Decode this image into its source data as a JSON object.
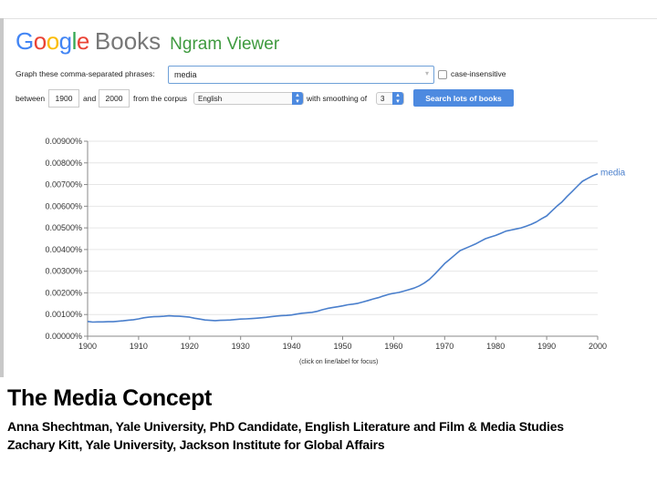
{
  "header": {
    "logo_google_letters": [
      "G",
      "o",
      "o",
      "g",
      "l",
      "e"
    ],
    "logo_google_colors": [
      "#4285f4",
      "#ea4335",
      "#fbbc05",
      "#4285f4",
      "#34a853",
      "#ea4335"
    ],
    "logo_books": "Books",
    "logo_ngram": "Ngram Viewer"
  },
  "form": {
    "phrases_label": "Graph these comma-separated phrases:",
    "phrases_value": "media",
    "case_insensitive_label": "case-insensitive",
    "between_label": "between",
    "year_start": "1900",
    "and_label": "and",
    "year_end": "2000",
    "corpus_label": "from the corpus",
    "corpus_value": "English",
    "smoothing_label": "with smoothing of",
    "smoothing_value": "3",
    "search_button": "Search lots of books"
  },
  "chart_data": {
    "type": "line",
    "x_ticks": [
      1900,
      1910,
      1920,
      1930,
      1940,
      1950,
      1960,
      1970,
      1980,
      1990,
      2000
    ],
    "y_ticks": [
      "0.00000%",
      "0.00100%",
      "0.00200%",
      "0.00300%",
      "0.00400%",
      "0.00500%",
      "0.00600%",
      "0.00700%",
      "0.00800%",
      "0.00900%"
    ],
    "xlim": [
      1900,
      2000
    ],
    "ylim": [
      0,
      0.009
    ],
    "grid": "horizontal",
    "line_color": "#4a7fcc",
    "series": [
      {
        "name": "media",
        "x": [
          1900,
          1901,
          1902,
          1903,
          1904,
          1905,
          1906,
          1907,
          1908,
          1909,
          1910,
          1911,
          1912,
          1913,
          1914,
          1915,
          1916,
          1917,
          1918,
          1919,
          1920,
          1921,
          1922,
          1923,
          1924,
          1925,
          1926,
          1927,
          1928,
          1929,
          1930,
          1931,
          1932,
          1933,
          1934,
          1935,
          1936,
          1937,
          1938,
          1939,
          1940,
          1941,
          1942,
          1943,
          1944,
          1945,
          1946,
          1947,
          1948,
          1949,
          1950,
          1951,
          1952,
          1953,
          1954,
          1955,
          1956,
          1957,
          1958,
          1959,
          1960,
          1961,
          1962,
          1963,
          1964,
          1965,
          1966,
          1967,
          1968,
          1969,
          1970,
          1971,
          1972,
          1973,
          1974,
          1975,
          1976,
          1977,
          1978,
          1979,
          1980,
          1981,
          1982,
          1983,
          1984,
          1985,
          1986,
          1987,
          1988,
          1989,
          1990,
          1991,
          1992,
          1993,
          1994,
          1995,
          1996,
          1997,
          1998,
          1999,
          2000
        ],
        "values": [
          0.00068,
          0.00065,
          0.00066,
          0.00066,
          0.00067,
          0.00067,
          0.00069,
          0.00071,
          0.00074,
          0.00076,
          0.0008,
          0.00085,
          0.00088,
          0.0009,
          0.00091,
          0.00092,
          0.00094,
          0.00093,
          0.00092,
          0.0009,
          0.00088,
          0.00083,
          0.00079,
          0.00075,
          0.00073,
          0.00072,
          0.00073,
          0.00074,
          0.00075,
          0.00077,
          0.00079,
          0.0008,
          0.00081,
          0.00083,
          0.00085,
          0.00087,
          0.0009,
          0.00093,
          0.00095,
          0.00096,
          0.00098,
          0.00102,
          0.00106,
          0.00108,
          0.0011,
          0.00115,
          0.00122,
          0.00128,
          0.00132,
          0.00136,
          0.0014,
          0.00145,
          0.00148,
          0.00152,
          0.00158,
          0.00165,
          0.00172,
          0.00178,
          0.00186,
          0.00193,
          0.00198,
          0.00202,
          0.00208,
          0.00215,
          0.00222,
          0.00232,
          0.00245,
          0.00262,
          0.00285,
          0.0031,
          0.00335,
          0.00355,
          0.00375,
          0.00395,
          0.00405,
          0.00415,
          0.00425,
          0.00438,
          0.0045,
          0.00458,
          0.00465,
          0.00475,
          0.00485,
          0.0049,
          0.00495,
          0.005,
          0.00508,
          0.00517,
          0.00528,
          0.00542,
          0.00555,
          0.00578,
          0.006,
          0.0062,
          0.00645,
          0.00668,
          0.00692,
          0.00715,
          0.00728,
          0.0074,
          0.0075
        ]
      }
    ]
  },
  "chart_footnote": "(click on line/label for focus)",
  "slide": {
    "title": "The Media Concept",
    "author_1": "Anna Shechtman, Yale University, PhD Candidate, English Literature and Film & Media Studies",
    "author_2": "Zachary Kitt, Yale University, Jackson Institute for Global Affairs"
  }
}
